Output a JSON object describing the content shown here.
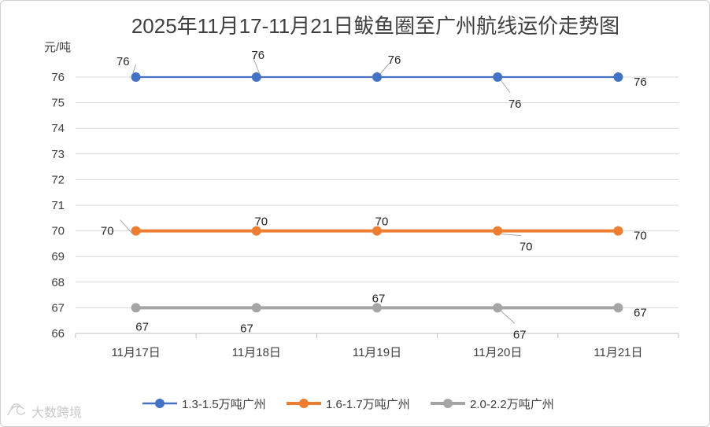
{
  "chart_data": {
    "type": "line",
    "title": "2025年11月17-11月21日鲅鱼圈至广州航线运价走势图",
    "ylabel": "元/吨",
    "xlabel": "",
    "categories": [
      "11月17日",
      "11月18日",
      "11月19日",
      "11月20日",
      "11月21日"
    ],
    "ylim": [
      66,
      76
    ],
    "yticks": [
      66,
      67,
      68,
      69,
      70,
      71,
      72,
      73,
      74,
      75,
      76
    ],
    "grid": true,
    "legend_position": "bottom",
    "data_labels": true,
    "series": [
      {
        "name": "1.3-1.5万吨广州",
        "color": "#4472c4",
        "values": [
          76,
          76,
          76,
          76,
          76
        ]
      },
      {
        "name": "1.6-1.7万吨广州",
        "color": "#ed7d31",
        "values": [
          70,
          70,
          70,
          70,
          70
        ]
      },
      {
        "name": "2.0-2.2万吨广州",
        "color": "#a5a5a5",
        "values": [
          67,
          67,
          67,
          67,
          67
        ]
      }
    ]
  },
  "watermark": "大数跨境"
}
